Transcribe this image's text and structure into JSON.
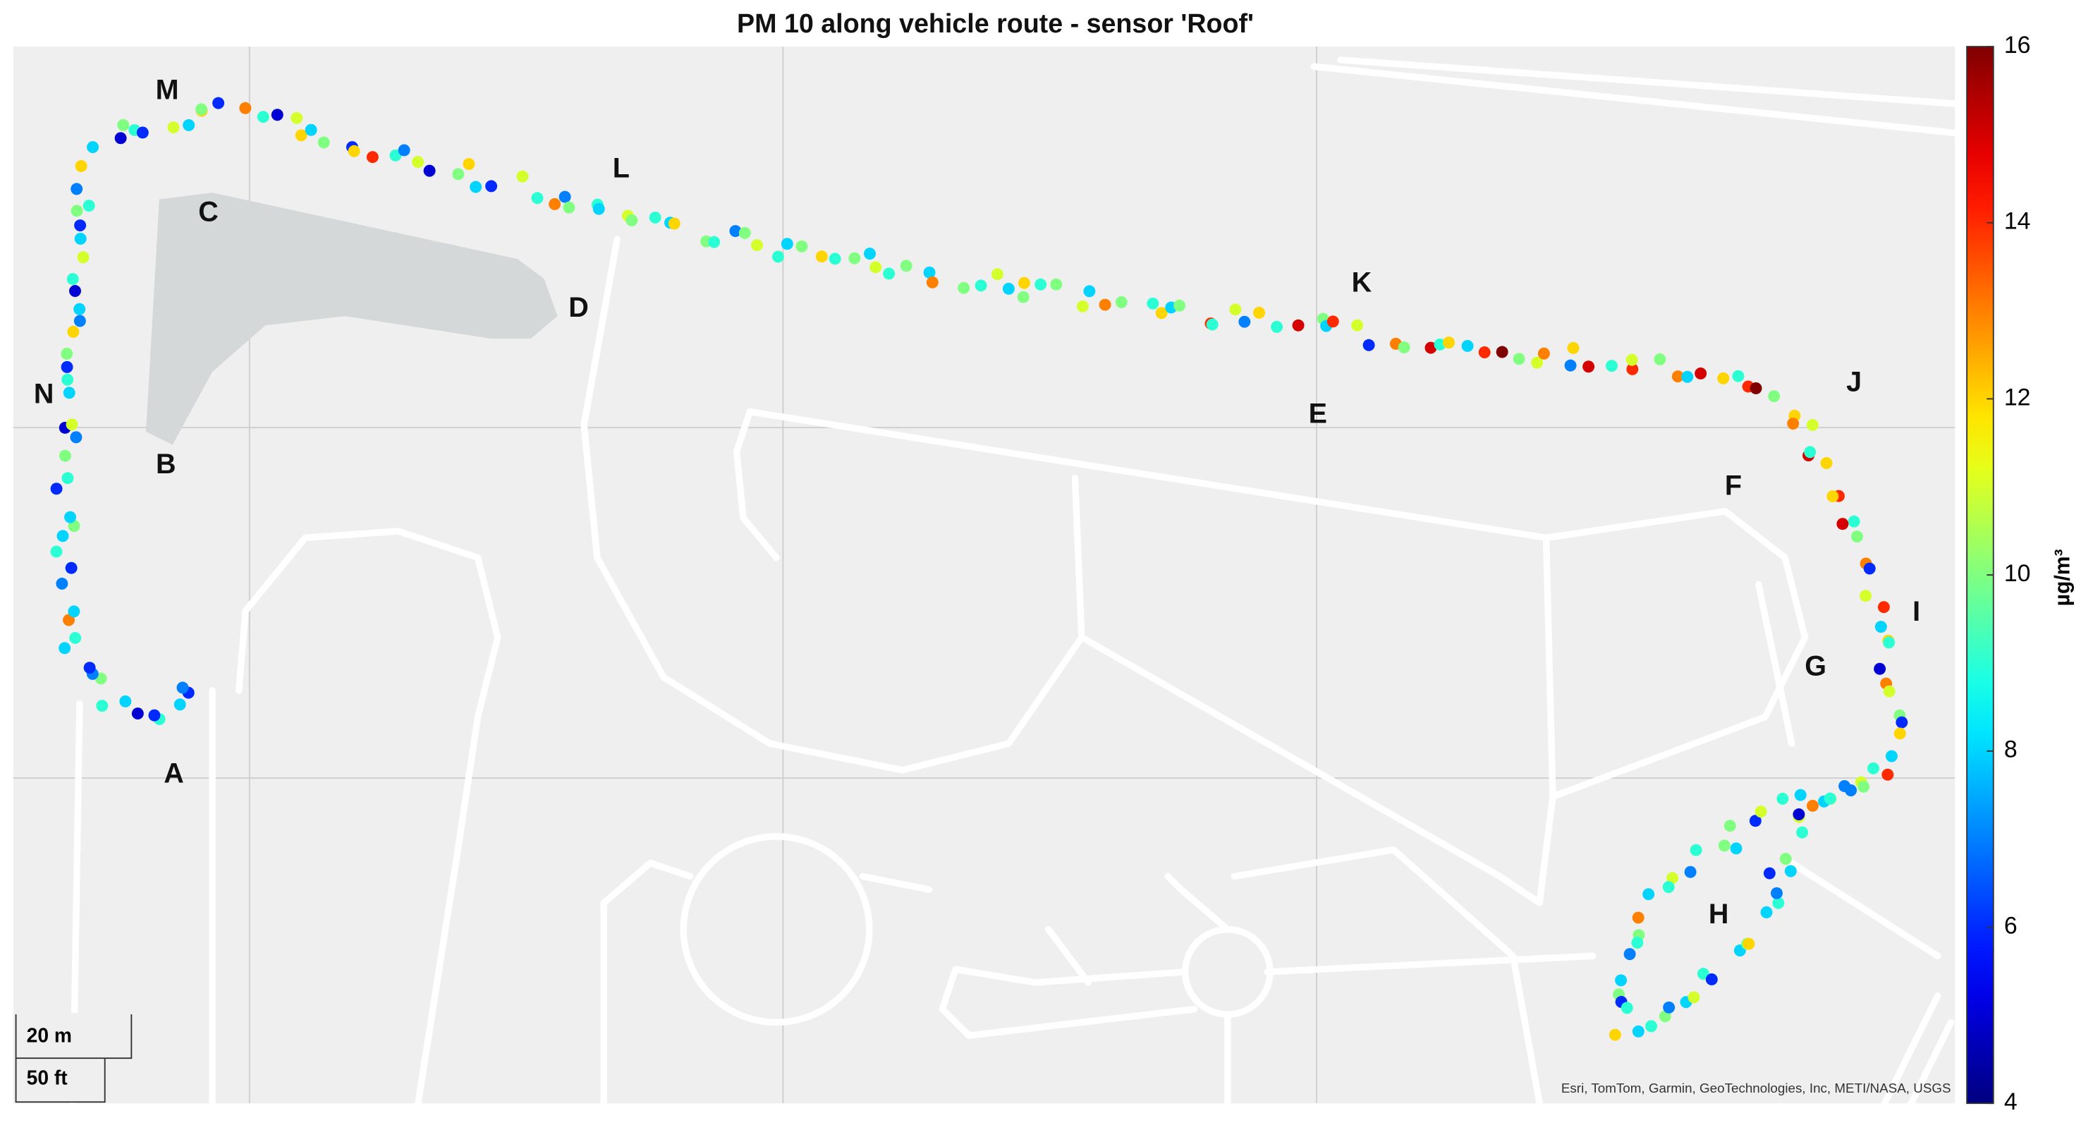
{
  "chart_data": {
    "type": "scatter",
    "title": "PM 10 along vehicle route - sensor 'Roof'",
    "colormap": "jet",
    "colorbar": {
      "label": "µg/m³",
      "lim": [
        4,
        16
      ],
      "ticks": [
        4,
        6,
        8,
        10,
        12,
        14,
        16
      ]
    },
    "annotations": [
      "A",
      "B",
      "C",
      "D",
      "E",
      "F",
      "G",
      "H",
      "I",
      "J",
      "K",
      "L",
      "M",
      "N"
    ],
    "scale_bar": [
      "20 m",
      "50 ft"
    ],
    "attribution": "Esri, TomTom, Garmin, GeoTechnologies, Inc, METI/NASA, USGS",
    "values": [
      6,
      7,
      8,
      9,
      6,
      5,
      8,
      9,
      10,
      7,
      6,
      8,
      9,
      13,
      8,
      7,
      6,
      9,
      8,
      10,
      8,
      6,
      9,
      10,
      7,
      5,
      11,
      8,
      9,
      6,
      10,
      12,
      7,
      8,
      5,
      9,
      11,
      8,
      6,
      10,
      9,
      7,
      12,
      8,
      5,
      10,
      9,
      6,
      11,
      8,
      12,
      10,
      6,
      13,
      9,
      5,
      11,
      12,
      8,
      10,
      6,
      12,
      14,
      9,
      7,
      11,
      5,
      10,
      12,
      8,
      6,
      11,
      9,
      13,
      7,
      10,
      9,
      8,
      11,
      10,
      9,
      8,
      12,
      10,
      9,
      7,
      10,
      11,
      9,
      8,
      10,
      12,
      9,
      10,
      8,
      11,
      9,
      10,
      8,
      13,
      10,
      9,
      11,
      8,
      10,
      12,
      9,
      10,
      11,
      8,
      13,
      10,
      9,
      12,
      8,
      10,
      14,
      9,
      11,
      7,
      12,
      9,
      15,
      10,
      8,
      14,
      11,
      6,
      13,
      10,
      15,
      9,
      12,
      8,
      14,
      16,
      10,
      11,
      13,
      7,
      12,
      15,
      9,
      14,
      11,
      10,
      13,
      8,
      15,
      12,
      9,
      14,
      16,
      10,
      12,
      13,
      11,
      15,
      9,
      12,
      14,
      12,
      9,
      15,
      10,
      13,
      6,
      11,
      14,
      8,
      12,
      9,
      5,
      13,
      11,
      10,
      6,
      12,
      8,
      14,
      9,
      11,
      7,
      10,
      13,
      8,
      9,
      6,
      11,
      10,
      8,
      10,
      9,
      7,
      11,
      9,
      8,
      13,
      10,
      9,
      7,
      8,
      10,
      6,
      9,
      12,
      8,
      9,
      10,
      7,
      8,
      11,
      9,
      6,
      8,
      10,
      12,
      8,
      9,
      7,
      6,
      8,
      10,
      9,
      11,
      5,
      8,
      9,
      7,
      10
    ]
  }
}
